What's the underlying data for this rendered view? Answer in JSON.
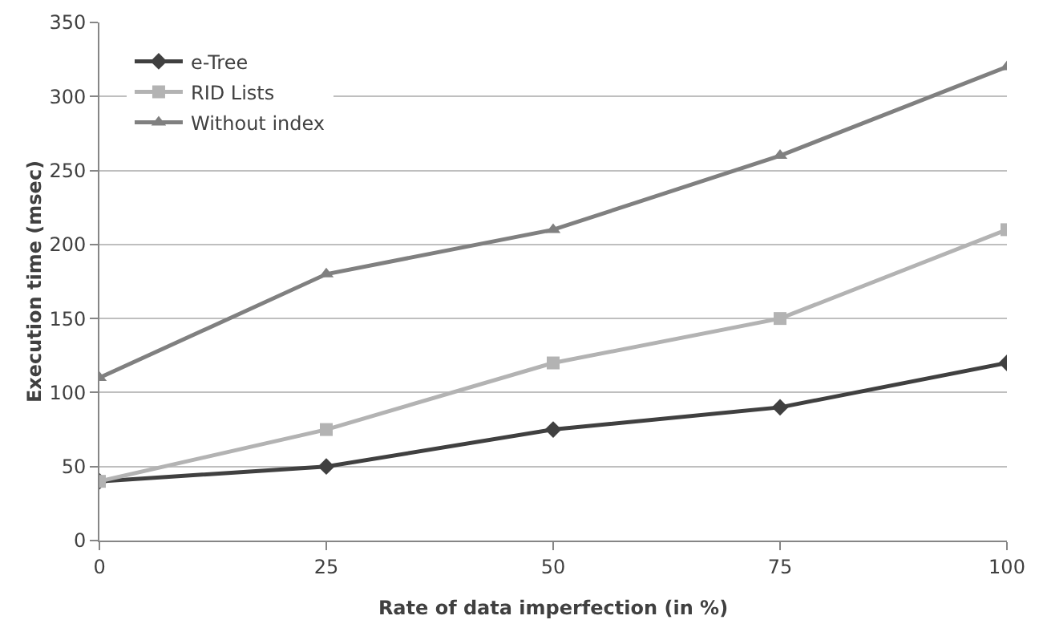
{
  "chart_data": {
    "type": "line",
    "xlabel": "Rate of data imperfection (in %)",
    "ylabel": "Execution time (msec)",
    "x": [
      0,
      25,
      50,
      75,
      100
    ],
    "series": [
      {
        "name": "e-Tree",
        "color": "#404040",
        "marker": "diamond",
        "values": [
          40,
          50,
          75,
          90,
          120
        ]
      },
      {
        "name": "RID Lists",
        "color": "#b3b3b3",
        "marker": "square",
        "values": [
          40,
          75,
          120,
          150,
          210
        ]
      },
      {
        "name": "Without index",
        "color": "#808080",
        "marker": "triangle",
        "values": [
          110,
          180,
          210,
          260,
          320
        ]
      }
    ],
    "xlim": [
      0,
      100
    ],
    "xticks": [
      0,
      25,
      50,
      75,
      100
    ],
    "ylim": [
      0,
      350
    ],
    "yticks": [
      0,
      50,
      100,
      150,
      200,
      250,
      300,
      350
    ],
    "grid": "y",
    "legend": "top left",
    "line_style": "solid"
  }
}
